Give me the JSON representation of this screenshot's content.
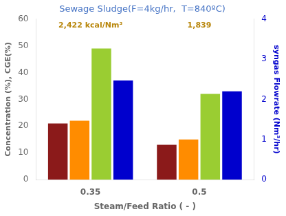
{
  "chart_data": {
    "type": "bar",
    "title": "Sewage Sludge(F=4kg/hr,  T=840ºC)",
    "title_color": "#4472C4",
    "xlabel": "Steam/Feed Ratio ( - )",
    "ylabel": "Concentration (%), CGE(%)",
    "y2label": "syngas Flowrate (Nm³/hr)",
    "categories": [
      "0.35",
      "0.5"
    ],
    "series": [
      {
        "color": "#8B1A1A",
        "values": [
          21,
          13
        ]
      },
      {
        "color": "#FF8C00",
        "values": [
          22,
          15
        ]
      },
      {
        "color": "#9ACD32",
        "values": [
          49,
          32
        ]
      },
      {
        "color": "#0000CD",
        "values": [
          2.47,
          2.2
        ],
        "axis": "y2"
      }
    ],
    "ylim": [
      0,
      60
    ],
    "yticks": [
      0,
      10,
      20,
      30,
      40,
      50,
      60
    ],
    "y2lim": [
      0,
      4
    ],
    "y2ticks": [
      0,
      1,
      2,
      3,
      4
    ],
    "grid": false,
    "annotations": [
      {
        "text": "2,422 kcal/Nm³",
        "category": "0.35",
        "color": "#B8860B"
      },
      {
        "text": "1,839",
        "category": "0.5",
        "color": "#B8860B"
      }
    ]
  }
}
